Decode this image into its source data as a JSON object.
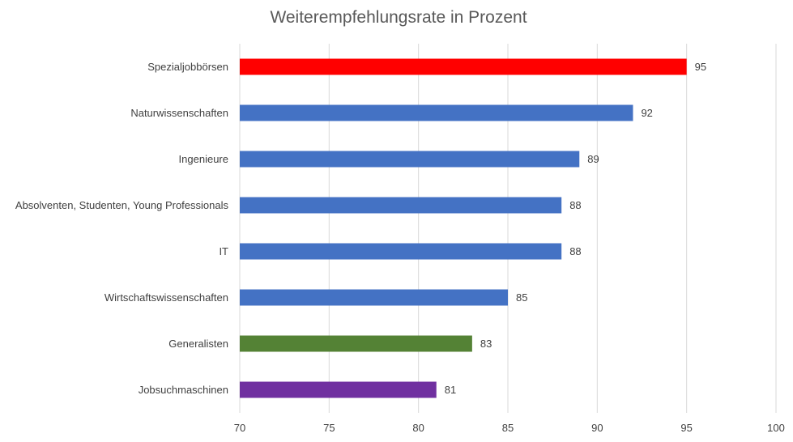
{
  "chart_data": {
    "type": "bar",
    "orientation": "horizontal",
    "title": "Weiterempfehlungsrate in Prozent",
    "xlabel": "",
    "ylabel": "",
    "xlim": [
      70,
      100
    ],
    "xticks": [
      70,
      75,
      80,
      85,
      90,
      95,
      100
    ],
    "grid": true,
    "legend": "none",
    "categories": [
      "Spezialjobbörsen",
      "Naturwissenschaften",
      "Ingenieure",
      "Absolventen, Studenten, Young Professionals",
      "IT",
      "Wirtschaftswissenschaften",
      "Generalisten",
      "Jobsuchmaschinen"
    ],
    "values": [
      95,
      92,
      89,
      88,
      88,
      85,
      83,
      81
    ],
    "colors": [
      "#ff0000",
      "#4472c4",
      "#4472c4",
      "#4472c4",
      "#4472c4",
      "#4472c4",
      "#548235",
      "#7030a0"
    ]
  }
}
